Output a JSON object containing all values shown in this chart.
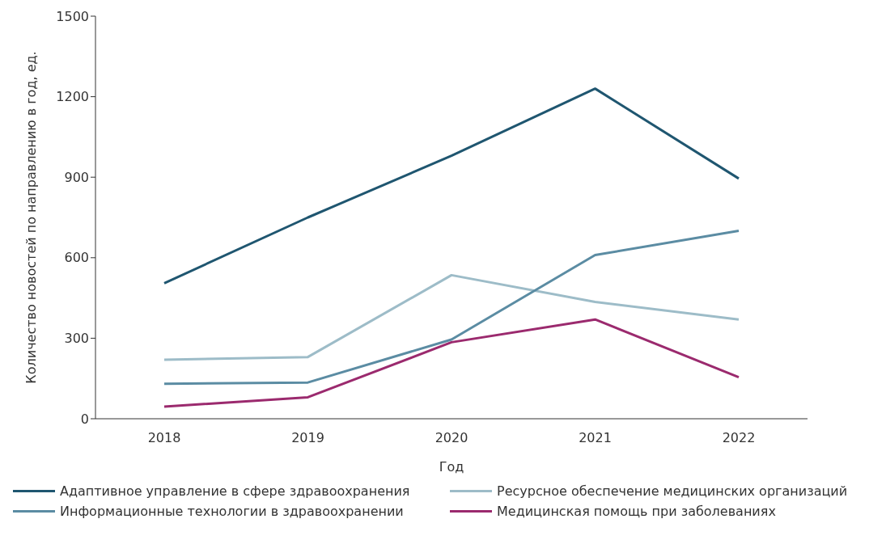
{
  "chart_data": {
    "type": "line",
    "xlabel": "Год",
    "ylabel": "Количество новостей по направлению в год, ед.",
    "categories": [
      "2018",
      "2019",
      "2020",
      "2021",
      "2022"
    ],
    "ylim": [
      0,
      1500
    ],
    "yticks": [
      0,
      300,
      600,
      900,
      1200,
      1500
    ],
    "grid": false,
    "legend": "bottom",
    "marker": "none",
    "line_style": "solid",
    "series": [
      {
        "name": "Адаптивное управление в сфере здравоохранения",
        "color": "#1f5670",
        "values": [
          505,
          750,
          980,
          1230,
          895
        ]
      },
      {
        "name": "Ресурсное обеспечение медицинских организаций",
        "color": "#9dbcc8",
        "values": [
          220,
          230,
          535,
          435,
          370
        ]
      },
      {
        "name": "Информационные технологии в здравоохранении",
        "color": "#5b8ca3",
        "values": [
          130,
          135,
          295,
          610,
          700
        ]
      },
      {
        "name": "Медицинская помощь при заболеваниях",
        "color": "#9b2a6e",
        "values": [
          45,
          80,
          285,
          370,
          155
        ]
      }
    ]
  }
}
